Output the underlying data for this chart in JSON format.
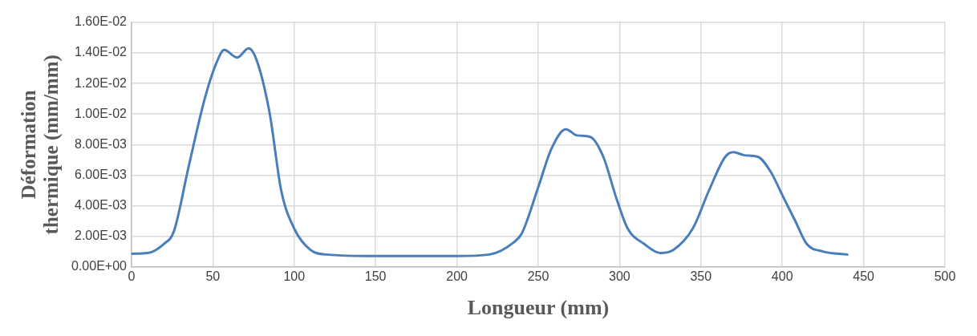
{
  "chart_data": {
    "type": "line",
    "xlabel": "Longueur (mm)",
    "ylabel": "Déformation\nthermique (mm/mm)",
    "xlim": [
      0,
      500
    ],
    "xticks": [
      0,
      50,
      100,
      150,
      200,
      250,
      300,
      350,
      400,
      450,
      500
    ],
    "ylim": [
      0,
      0.016
    ],
    "yticks": [
      {
        "value": 0,
        "label": "0.00E+00"
      },
      {
        "value": 0.002,
        "label": "2.00E-03"
      },
      {
        "value": 0.004,
        "label": "4.00E-03"
      },
      {
        "value": 0.006,
        "label": "6.00E-03"
      },
      {
        "value": 0.008,
        "label": "8.00E-03"
      },
      {
        "value": 0.01,
        "label": "1.00E-02"
      },
      {
        "value": 0.012,
        "label": "1.20E-02"
      },
      {
        "value": 0.014,
        "label": "1.40E-02"
      },
      {
        "value": 0.016,
        "label": "1.60E-02"
      }
    ],
    "grid": true,
    "legend": false,
    "marker": "none",
    "line_style": "solid",
    "x": [
      0,
      10,
      20,
      26,
      35,
      45,
      52,
      57,
      65,
      72,
      77,
      85,
      92,
      100,
      110,
      120,
      150,
      200,
      220,
      235,
      240,
      250,
      258,
      267,
      274,
      282,
      290,
      298,
      305,
      315,
      325,
      333,
      345,
      355,
      365,
      370,
      377,
      385,
      393,
      400,
      408,
      415,
      425,
      440
    ],
    "series": [
      {
        "color": "#4a7ebb",
        "values": [
          0.00085,
          0.0009,
          0.0015,
          0.0023,
          0.0065,
          0.011,
          0.0133,
          0.0142,
          0.0137,
          0.0143,
          0.0135,
          0.01,
          0.005,
          0.0025,
          0.0011,
          0.0008,
          0.0007,
          0.0007,
          0.0008,
          0.0016,
          0.0022,
          0.0052,
          0.0077,
          0.009,
          0.0086,
          0.0085,
          0.0072,
          0.0045,
          0.0025,
          0.0015,
          0.0009,
          0.0011,
          0.0025,
          0.005,
          0.0072,
          0.0075,
          0.0073,
          0.0072,
          0.0062,
          0.0047,
          0.003,
          0.0015,
          0.001,
          0.0008
        ]
      }
    ]
  }
}
